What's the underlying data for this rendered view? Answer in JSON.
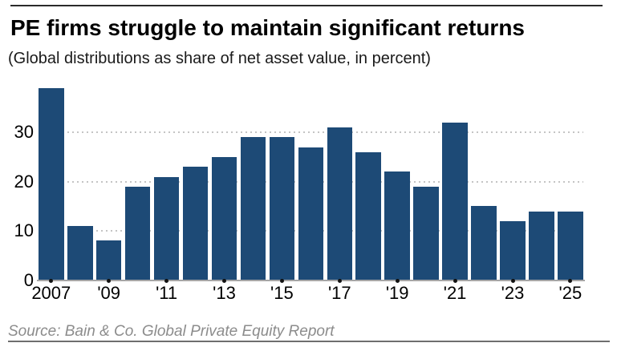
{
  "header": {
    "title": "PE firms struggle to maintain significant returns",
    "subtitle": "(Global distributions as share of net asset value, in percent)"
  },
  "chart_data": {
    "type": "bar",
    "title": "PE firms struggle to maintain significant returns",
    "subtitle": "(Global distributions as share of net asset value, in percent)",
    "categories": [
      "2007",
      "2008",
      "2009",
      "2010",
      "2011",
      "2012",
      "2013",
      "2014",
      "2015",
      "2016",
      "2017",
      "2018",
      "2019",
      "2020",
      "2021",
      "2022",
      "2023",
      "2024",
      "2025"
    ],
    "values": [
      39,
      11,
      8,
      19,
      21,
      23,
      25,
      29,
      29,
      27,
      31,
      26,
      22,
      19,
      32,
      15,
      12,
      14,
      14
    ],
    "xlabel": "",
    "ylabel": "",
    "y_ticks": [
      0,
      10,
      20,
      30
    ],
    "ylim": [
      0,
      40
    ],
    "x_tick_labels": [
      "2007",
      "'09",
      "'11",
      "'13",
      "'15",
      "'17",
      "'19",
      "'21",
      "'23",
      "'25"
    ],
    "x_tick_every": 2,
    "grid": "horizontal-dotted",
    "legend": "none",
    "bar_color": "#1d4a76",
    "axis_color": "#a6a6a6",
    "gridline_color": "#c4c4c4",
    "tick_dot_color": "#111111"
  },
  "footer": {
    "source": "Source: Bain & Co. Global Private Equity Report"
  }
}
